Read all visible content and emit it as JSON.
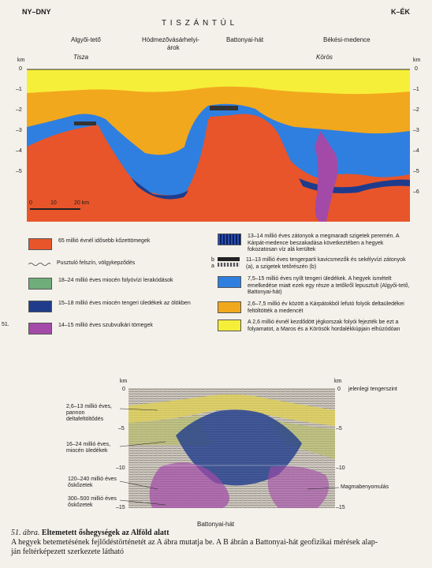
{
  "top": {
    "left_dir": "NY–DNY",
    "right_dir": "K–ÉK",
    "region": "T I S Z Á N T Ú L",
    "places": [
      "Algyői-tető",
      "Hódmezővásárhelyi-",
      "árok",
      "Battonyai-hát",
      "Békési-medence"
    ],
    "rivers": [
      "Tisza",
      "Körös"
    ],
    "axis_unit": "km",
    "ticks": [
      "0",
      "–1",
      "–2",
      "–3",
      "–4",
      "–5",
      "–6"
    ],
    "scale": [
      "0",
      "10",
      "20 km"
    ]
  },
  "legend": {
    "left": [
      {
        "color": "#e8552a",
        "text": "65 millió évnél idősebb kőzettömegek"
      },
      {
        "color": "none",
        "text": "Pusztuló felszín, völgykepződés"
      },
      {
        "color": "#6fae7a",
        "text": "18–24 millió éves miocén folyóvízi lerakódások"
      },
      {
        "color": "#1f3c8c",
        "text": "15–18 millió éves miocén tengeri üledékek az ölökben"
      },
      {
        "color": "#a34aa8",
        "text": "14–15 millió éves szubvulkári tömegek"
      }
    ],
    "right": [
      {
        "color": "#2a4fb0",
        "text": "13–14 millió éves zátonyok a megmaradt szigetek peremén. A Kárpát-medence beszakadása következtében a hegyek fokozatosan víz alá kerültek"
      },
      {
        "color": "#333",
        "text": "11–13 millió éves tengerparti kavicsmezők és sekélyvízi zátonyok (a), a szigetek tetőrészén (b)",
        "marks": [
          "b",
          "a"
        ]
      },
      {
        "color": "#2f7fe0",
        "text": "7,5–15 millió éves nyílt tengeri üledékek. A hegyek ismételt emelkedése miatt ezek egy része a tetőkről lepusztult (Algyői-tető, Battonyai-hát)"
      },
      {
        "color": "#f2a81d",
        "text": "2,6–7,5 millió év között a Kárpátokból lefutó folyók deltaüledékei feltöltötték a medencét"
      },
      {
        "color": "#f6ef3a",
        "text": "A 2,6 millió évnél kezdődött jégkorszak folyói fejezték be ezt a folyamatot, a Maros és a Körösök hordalékkúpjain elhúzódóan"
      }
    ]
  },
  "side_number": "51.",
  "bottom": {
    "axis_unit": "km",
    "left_ticks": [
      "0",
      "–5",
      "–10",
      "–15"
    ],
    "right_ticks": [
      "0",
      "–5",
      "–10",
      "–15"
    ],
    "sea_level": "jelenlegi tengerszint",
    "labels": [
      "2,6–13 millió éves, pannon deltafeltöltődés",
      "16–24 millió éves, miocén üledékek",
      "120–240 millió éves őskőzetek",
      "300–500 millió éves őskőzetek"
    ],
    "magma": "Magmabenyomulás",
    "ridge": "Battonyai-hát"
  },
  "caption": {
    "fig_no": "51. ábra.",
    "title": "Eltemetett őshegységek az Alföld alatt",
    "line2": "A hegyek betemetésének fejlődéstörténetét az A ábra mutatja be. A B ábrán a Battonyai-hát geofizikai mérések alap-",
    "line3": "ján feltérképezett szerkezete látható"
  }
}
